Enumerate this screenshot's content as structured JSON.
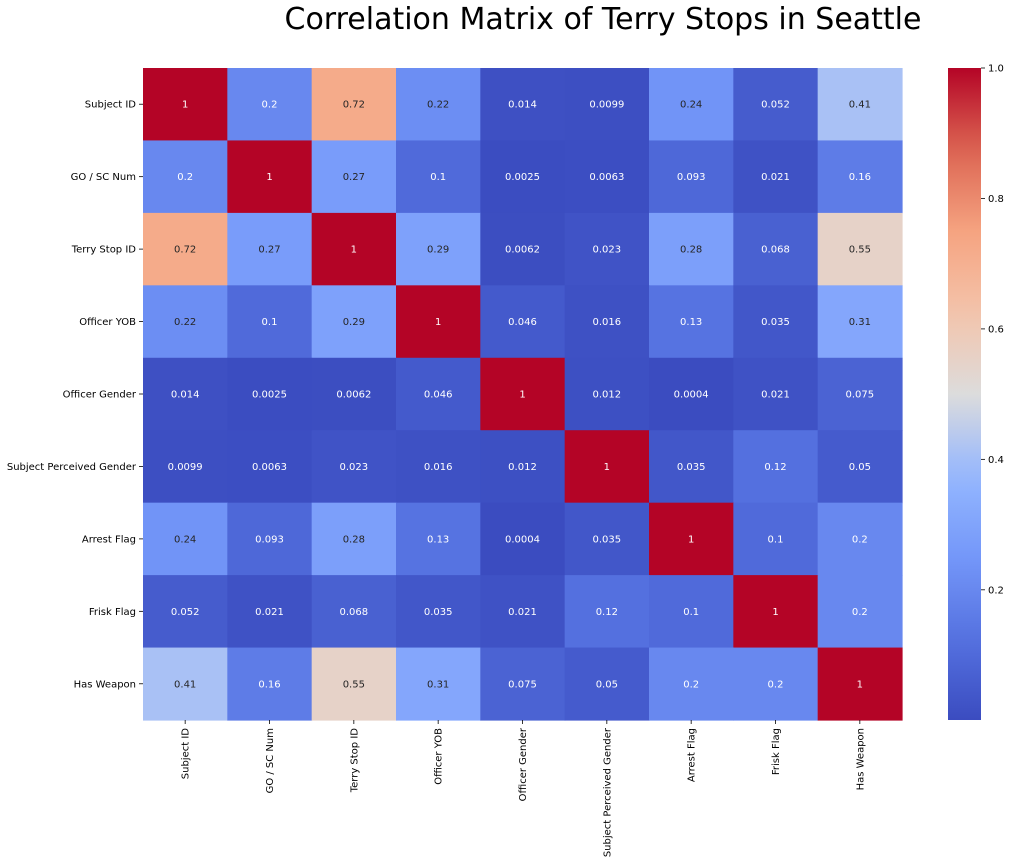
{
  "chart_data": {
    "type": "heatmap",
    "title": "Correlation Matrix of Terry Stops in Seattle",
    "xlabel": "",
    "ylabel": "",
    "colormap": "coolwarm",
    "row_labels": [
      "Subject ID",
      "GO / SC Num",
      "Terry Stop ID",
      "Officer YOB",
      "Officer Gender",
      "Subject Perceived Gender",
      "Arrest Flag",
      "Frisk Flag",
      "Has Weapon"
    ],
    "col_labels": [
      "Subject ID",
      "GO / SC Num",
      "Terry Stop ID",
      "Officer YOB",
      "Officer Gender",
      "Subject Perceived Gender",
      "Arrest Flag",
      "Frisk Flag",
      "Has Weapon"
    ],
    "values": [
      [
        1,
        0.2,
        0.72,
        0.22,
        0.014,
        0.0099,
        0.24,
        0.052,
        0.41
      ],
      [
        0.2,
        1,
        0.27,
        0.1,
        0.0025,
        0.0063,
        0.093,
        0.021,
        0.16
      ],
      [
        0.72,
        0.27,
        1,
        0.29,
        0.0062,
        0.023,
        0.28,
        0.068,
        0.55
      ],
      [
        0.22,
        0.1,
        0.29,
        1,
        0.046,
        0.016,
        0.13,
        0.035,
        0.31
      ],
      [
        0.014,
        0.0025,
        0.0062,
        0.046,
        1,
        0.012,
        0.0004,
        0.021,
        0.075
      ],
      [
        0.0099,
        0.0063,
        0.023,
        0.016,
        0.012,
        1,
        0.035,
        0.12,
        0.05
      ],
      [
        0.24,
        0.093,
        0.28,
        0.13,
        0.0004,
        0.035,
        1,
        0.1,
        0.2
      ],
      [
        0.052,
        0.021,
        0.068,
        0.035,
        0.021,
        0.12,
        0.1,
        1,
        0.2
      ],
      [
        0.41,
        0.16,
        0.55,
        0.31,
        0.075,
        0.05,
        0.2,
        0.2,
        1
      ]
    ],
    "annotations": [
      [
        "1",
        "0.2",
        "0.72",
        "0.22",
        "0.014",
        "0.0099",
        "0.24",
        "0.052",
        "0.41"
      ],
      [
        "0.2",
        "1",
        "0.27",
        "0.1",
        "0.0025",
        "0.0063",
        "0.093",
        "0.021",
        "0.16"
      ],
      [
        "0.72",
        "0.27",
        "1",
        "0.29",
        "0.0062",
        "0.023",
        "0.28",
        "0.068",
        "0.55"
      ],
      [
        "0.22",
        "0.1",
        "0.29",
        "1",
        "0.046",
        "0.016",
        "0.13",
        "0.035",
        "0.31"
      ],
      [
        "0.014",
        "0.0025",
        "0.0062",
        "0.046",
        "1",
        "0.012",
        "0.0004",
        "0.021",
        "0.075"
      ],
      [
        "0.0099",
        "0.0063",
        "0.023",
        "0.016",
        "0.012",
        "1",
        "0.035",
        "0.12",
        "0.05"
      ],
      [
        "0.24",
        "0.093",
        "0.28",
        "0.13",
        "0.0004",
        "0.035",
        "1",
        "0.1",
        "0.2"
      ],
      [
        "0.052",
        "0.021",
        "0.068",
        "0.035",
        "0.021",
        "0.12",
        "0.1",
        "1",
        "0.2"
      ],
      [
        "0.41",
        "0.16",
        "0.55",
        "0.31",
        "0.075",
        "0.05",
        "0.2",
        "0.2",
        "1"
      ]
    ],
    "vmin": 0.0004,
    "vmax": 1.0,
    "colorbar": {
      "ticks": [
        0.2,
        0.4,
        0.6,
        0.8,
        1.0
      ],
      "tick_labels": [
        "0.2",
        "0.4",
        "0.6",
        "0.8",
        "1.0"
      ]
    },
    "grid": false,
    "legend": "colorbar-right"
  }
}
